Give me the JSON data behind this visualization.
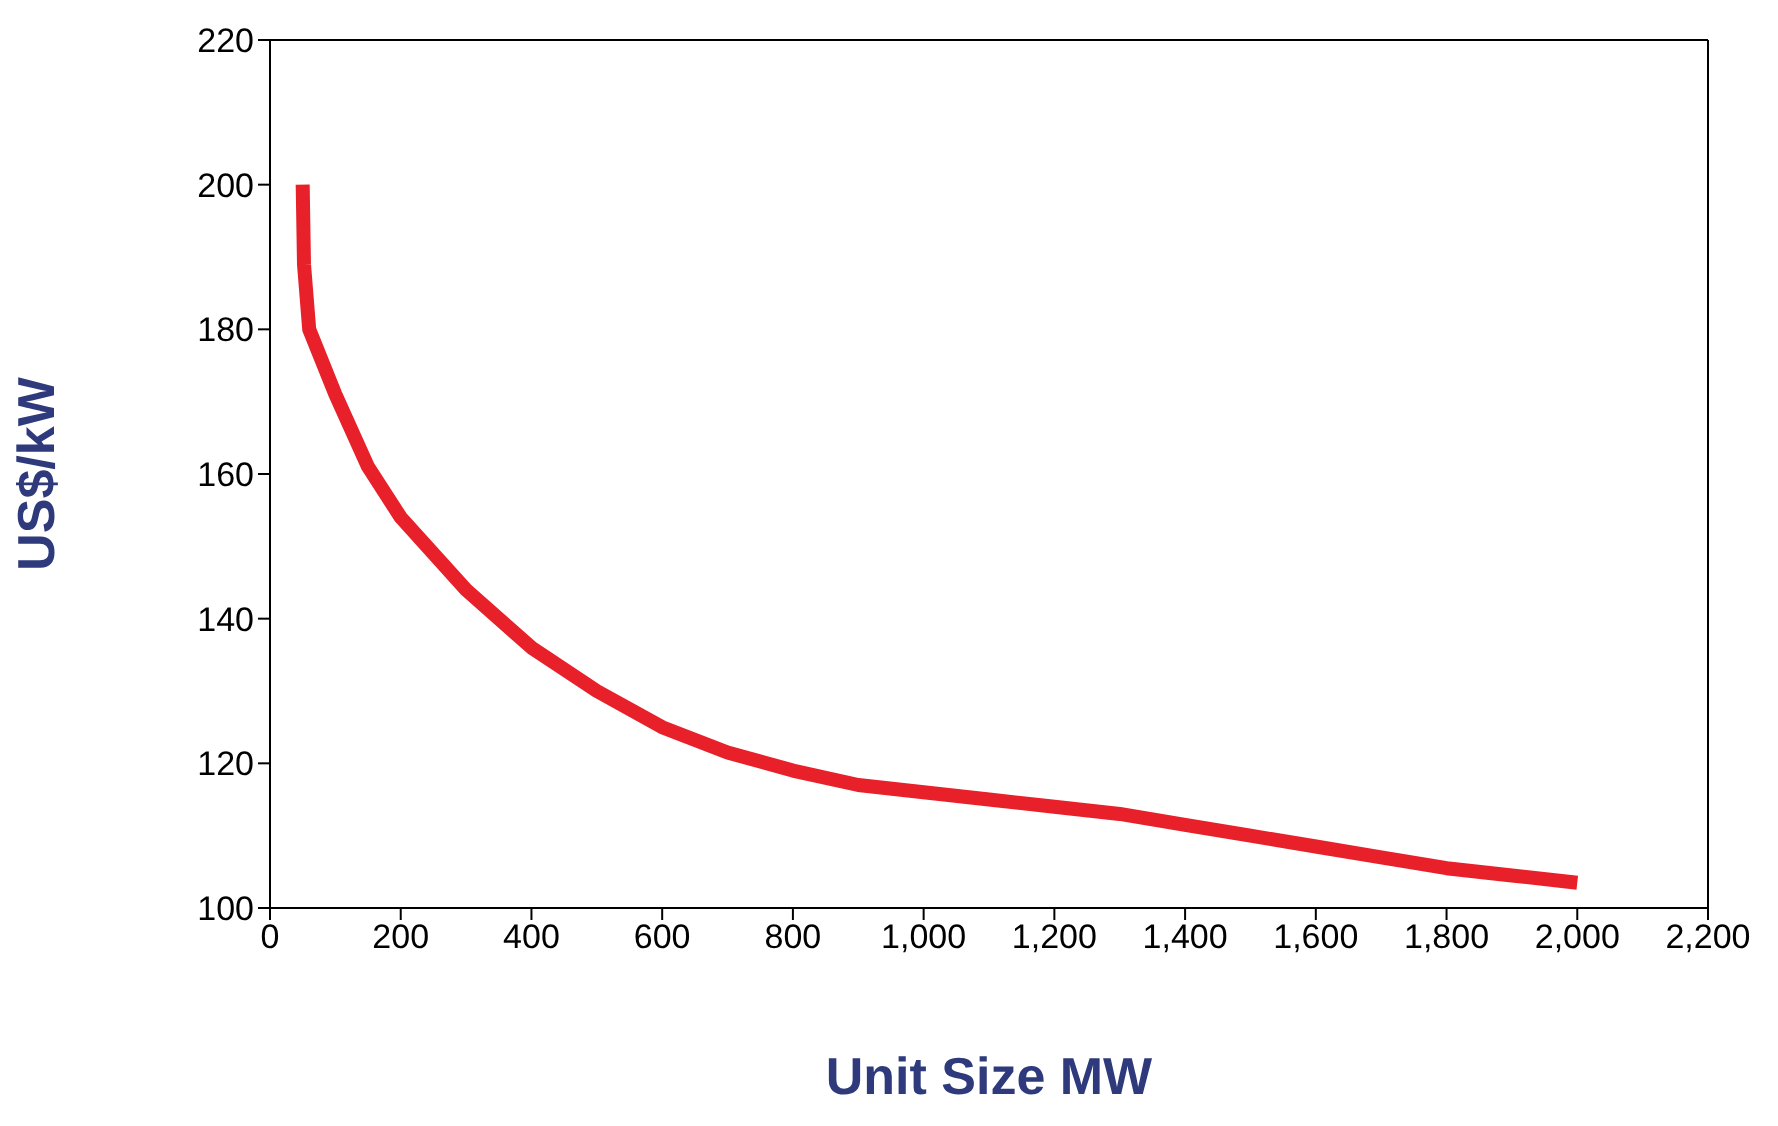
{
  "chart_data": {
    "type": "line",
    "xlabel": "Unit Size MW",
    "ylabel": "US$/kW",
    "x": [
      50,
      52,
      60,
      100,
      150,
      200,
      300,
      400,
      500,
      600,
      700,
      800,
      900,
      1000,
      1100,
      1200,
      1300,
      1400,
      1500,
      1600,
      1700,
      1800,
      1900,
      2000
    ],
    "series": [
      {
        "color": "#e8202a",
        "values": [
          200,
          189,
          180,
          171,
          161,
          154,
          144,
          136,
          130,
          125,
          121.5,
          119,
          117,
          116,
          115,
          114,
          113,
          111.5,
          110,
          108.5,
          107,
          105.5,
          104.5,
          103.5
        ]
      }
    ],
    "xlim": [
      0,
      2200
    ],
    "xticks": [
      0,
      200,
      400,
      600,
      800,
      {
        "value": 1000,
        "label": "1,000"
      },
      {
        "value": 1200,
        "label": "1,200"
      },
      {
        "value": 1400,
        "label": "1,400"
      },
      {
        "value": 1600,
        "label": "1,600"
      },
      {
        "value": 1800,
        "label": "1,800"
      },
      {
        "value": 2000,
        "label": "2,000"
      },
      {
        "value": 2200,
        "label": "2,200"
      }
    ],
    "ylim": [
      100,
      220
    ],
    "yticks": [
      100,
      120,
      140,
      160,
      180,
      200,
      220
    ],
    "grid": false,
    "legend": false,
    "marker": "none",
    "line_style": "solid"
  }
}
